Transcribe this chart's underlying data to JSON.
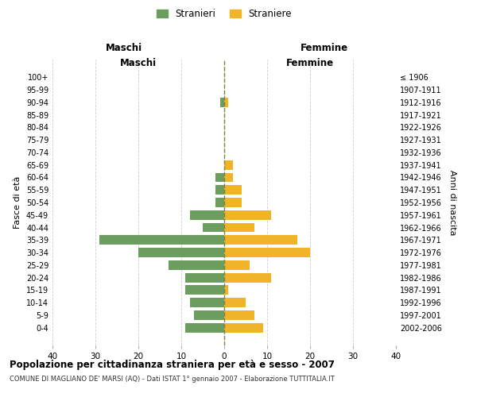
{
  "age_groups": [
    "0-4",
    "5-9",
    "10-14",
    "15-19",
    "20-24",
    "25-29",
    "30-34",
    "35-39",
    "40-44",
    "45-49",
    "50-54",
    "55-59",
    "60-64",
    "65-69",
    "70-74",
    "75-79",
    "80-84",
    "85-89",
    "90-94",
    "95-99",
    "100+"
  ],
  "birth_years": [
    "2002-2006",
    "1997-2001",
    "1992-1996",
    "1987-1991",
    "1982-1986",
    "1977-1981",
    "1972-1976",
    "1967-1971",
    "1962-1966",
    "1957-1961",
    "1952-1956",
    "1947-1951",
    "1942-1946",
    "1937-1941",
    "1932-1936",
    "1927-1931",
    "1922-1926",
    "1917-1921",
    "1912-1916",
    "1907-1911",
    "≤ 1906"
  ],
  "maschi": [
    9,
    7,
    8,
    9,
    9,
    13,
    20,
    29,
    5,
    8,
    2,
    2,
    2,
    0,
    0,
    0,
    0,
    0,
    1,
    0,
    0
  ],
  "femmine": [
    9,
    7,
    5,
    1,
    11,
    6,
    20,
    17,
    7,
    11,
    4,
    4,
    2,
    2,
    0,
    0,
    0,
    0,
    1,
    0,
    0
  ],
  "color_maschi": "#6b9e5e",
  "color_femmine": "#f0b429",
  "title": "Popolazione per cittadinanza straniera per età e sesso - 2007",
  "subtitle": "COMUNE DI MAGLIANO DE' MARSI (AQ) - Dati ISTAT 1° gennaio 2007 - Elaborazione TUTTITALIA.IT",
  "xlabel_left": "Maschi",
  "xlabel_right": "Femmine",
  "ylabel_left": "Fasce di età",
  "ylabel_right": "Anni di nascita",
  "xlim": 40,
  "legend_stranieri": "Stranieri",
  "legend_straniere": "Straniere",
  "background_color": "#ffffff",
  "grid_color": "#cccccc"
}
